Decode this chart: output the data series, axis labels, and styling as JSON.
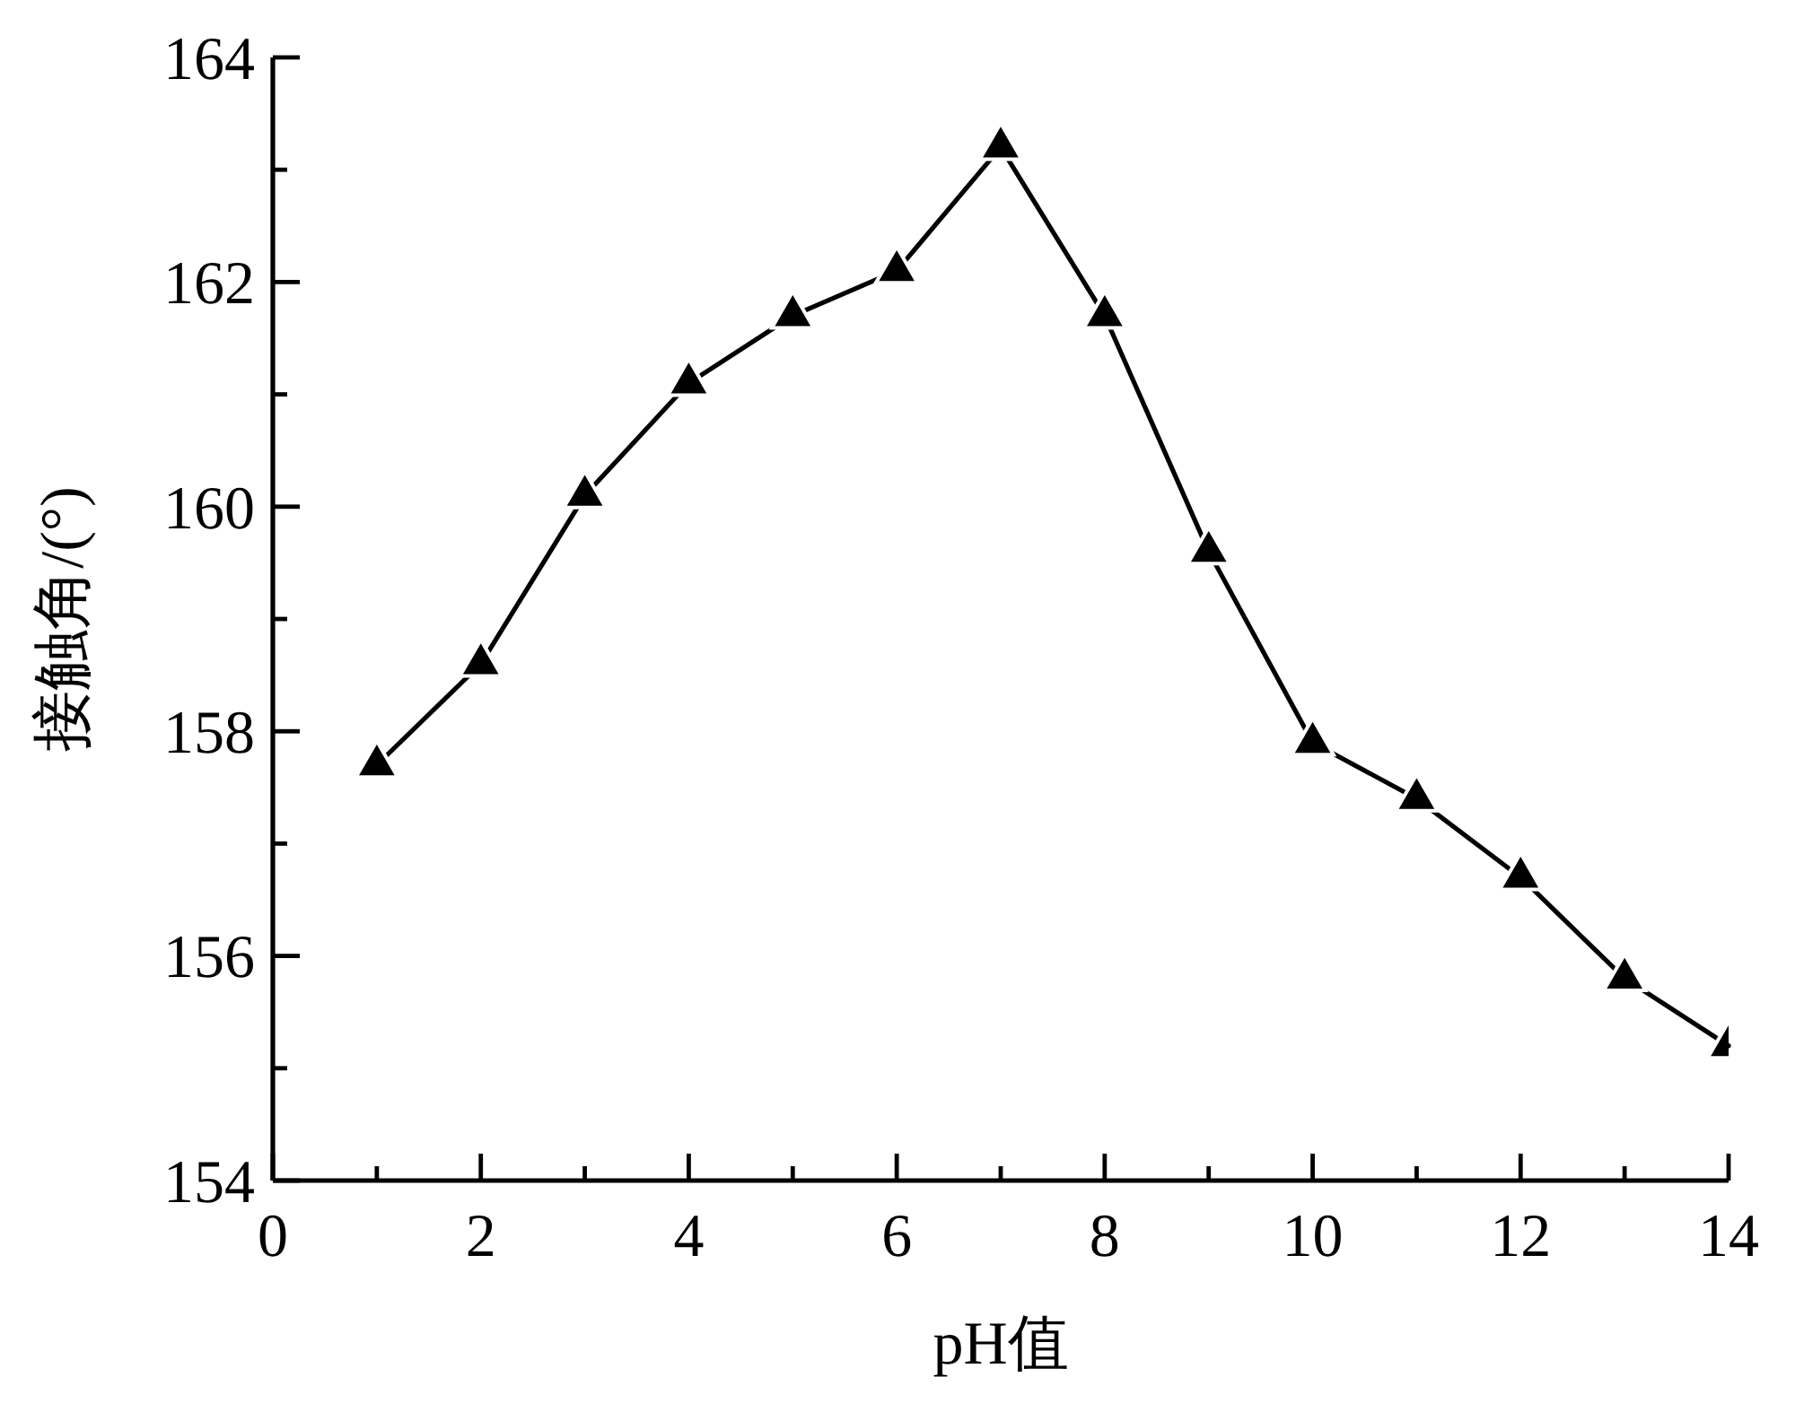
{
  "chart_data": {
    "type": "line",
    "xlabel": "pH值",
    "ylabel": "接触角/(°)",
    "x": [
      1,
      2,
      3,
      4,
      5,
      6,
      7,
      8,
      9,
      10,
      11,
      12,
      13,
      14
    ],
    "series": [
      {
        "color": "#000000",
        "values": [
          157.7,
          158.6,
          160.1,
          161.1,
          161.7,
          162.1,
          163.2,
          161.7,
          159.6,
          157.9,
          157.4,
          156.7,
          155.8,
          155.2
        ]
      }
    ],
    "xlim": [
      0,
      14
    ],
    "xticks": [
      0,
      {
        "value": 1,
        "label": null
      },
      2,
      {
        "value": 3,
        "label": null
      },
      4,
      {
        "value": 5,
        "label": null
      },
      6,
      {
        "value": 7,
        "label": null
      },
      8,
      {
        "value": 9,
        "label": null
      },
      10,
      {
        "value": 11,
        "label": null
      },
      12,
      {
        "value": 13,
        "label": null
      },
      14
    ],
    "ylim": [
      154,
      164
    ],
    "yticks": [
      154,
      {
        "value": 155,
        "label": null
      },
      156,
      {
        "value": 157,
        "label": null
      },
      158,
      {
        "value": 159,
        "label": null
      },
      160,
      {
        "value": 161,
        "label": null
      },
      162,
      {
        "value": 163,
        "label": null
      },
      164
    ],
    "marker": "triangle",
    "line_style": "solid"
  }
}
